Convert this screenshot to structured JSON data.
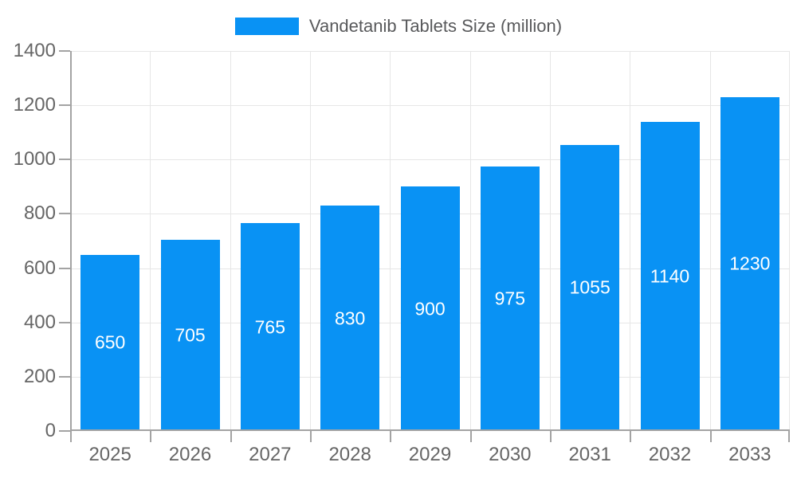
{
  "legend": {
    "label": "Vandetanib Tablets Size (million)",
    "position": "top"
  },
  "colors": {
    "bar": "#0992f4",
    "grid": "#e6e6e6",
    "axis": "#a3a3a3",
    "axis_text": "#666666",
    "legend_text": "#58595b",
    "bar_label_text": "#ffffff",
    "background": "#ffffff"
  },
  "chart_data": {
    "type": "bar",
    "title": "Vandetanib Tablets Size (million)",
    "categories": [
      "2025",
      "2026",
      "2027",
      "2028",
      "2029",
      "2030",
      "2031",
      "2032",
      "2033"
    ],
    "values": [
      650,
      705,
      765,
      830,
      900,
      975,
      1055,
      1140,
      1230
    ],
    "series_name": "Vandetanib Tablets Size (million)",
    "xlabel": "",
    "ylabel": "",
    "ylim": [
      0,
      1400
    ],
    "yticks": [
      0,
      200,
      400,
      600,
      800,
      1000,
      1200,
      1400
    ],
    "grid": true,
    "bar_value_labels": "inside-center",
    "legend_position": "top-center"
  }
}
